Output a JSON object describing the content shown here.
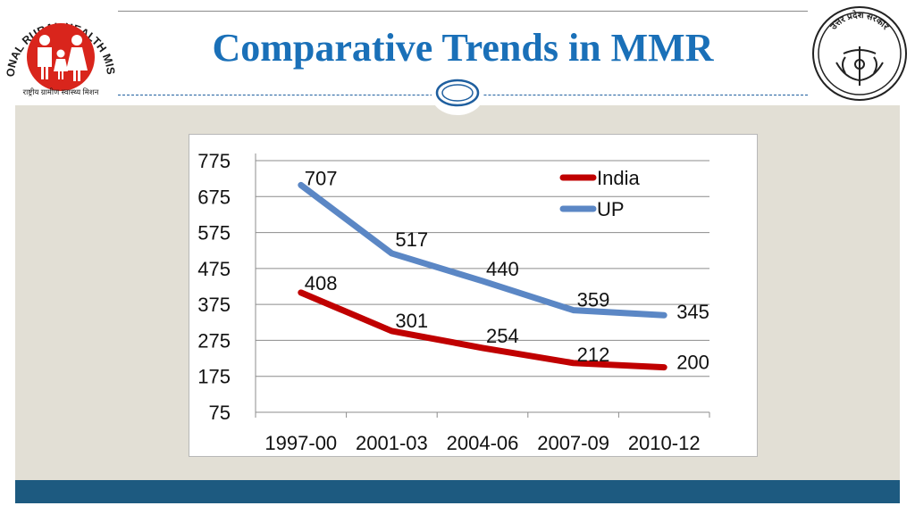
{
  "slide": {
    "title": "Comparative Trends in MMR",
    "left_logo": {
      "arc_text": "NATIONAL RURAL HEALTH MISSION",
      "hindi_text": "राष्ट्रीय ग्रामीण स्वास्थ्य मिशन"
    },
    "right_logo": {
      "arc_text": "उत्तर प्रदेश सरकार"
    },
    "colors": {
      "title": "#1a70b8",
      "background": "#e2dfd5",
      "footer": "#1d5a80",
      "logo_red": "#d9251c"
    }
  },
  "chart_data": {
    "type": "line",
    "title": "",
    "xlabel": "",
    "ylabel": "",
    "categories": [
      "1997-00",
      "2001-03",
      "2004-06",
      "2007-09",
      "2010-12"
    ],
    "yticks": [
      75,
      175,
      275,
      375,
      475,
      575,
      675,
      775
    ],
    "ylim": [
      75,
      775
    ],
    "grid": true,
    "legend_position": "top-right",
    "series": [
      {
        "name": "India",
        "color": "#c00000",
        "values": [
          408,
          301,
          254,
          212,
          200
        ],
        "labels": [
          "408",
          "301",
          "254",
          "212",
          "200"
        ]
      },
      {
        "name": "UP",
        "color": "#5b87c5",
        "values": [
          707,
          517,
          440,
          359,
          345
        ],
        "labels": [
          "707",
          "517",
          "440",
          "359",
          "345"
        ]
      }
    ]
  }
}
